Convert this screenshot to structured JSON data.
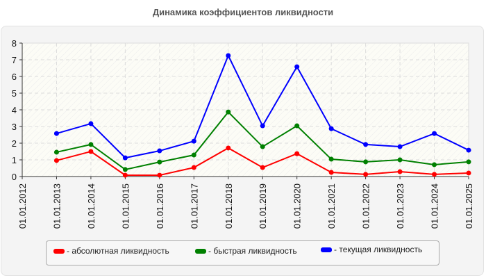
{
  "title": "Динамика коэффициентов ликвидности",
  "chart_data": {
    "type": "line",
    "title": "Динамика коэффициентов ликвидности",
    "xlabel": "",
    "ylabel": "",
    "ylim": [
      0,
      8
    ],
    "yticks": [
      0,
      1,
      2,
      3,
      4,
      5,
      6,
      7,
      8
    ],
    "grid": true,
    "legend_position": "bottom",
    "categories": [
      "01.01.2012",
      "01.01.2013",
      "01.01.2014",
      "01.01.2015",
      "01.01.2016",
      "01.01.2017",
      "01.01.2018",
      "01.01.2019",
      "01.01.2020",
      "01.01.2021",
      "01.01.2022",
      "01.01.2023",
      "01.01.2024",
      "01.01.2025"
    ],
    "series": [
      {
        "name": "абсолютная ликвидность",
        "color": "#ff0000",
        "values": [
          null,
          0.96,
          1.5,
          0.08,
          0.08,
          0.54,
          1.71,
          0.54,
          1.37,
          0.25,
          0.13,
          0.29,
          0.13,
          0.21
        ]
      },
      {
        "name": "быстрая ликвидность",
        "color": "#008000",
        "values": [
          null,
          1.46,
          1.92,
          0.42,
          0.87,
          1.29,
          3.87,
          1.79,
          3.04,
          1.04,
          0.88,
          1.0,
          0.71,
          0.88
        ]
      },
      {
        "name": "текущая ликвидность",
        "color": "#0000ff",
        "values": [
          null,
          2.58,
          3.17,
          1.12,
          1.54,
          2.12,
          7.25,
          3.04,
          6.58,
          2.87,
          1.92,
          1.79,
          2.58,
          1.58
        ]
      }
    ]
  },
  "legend": [
    {
      "label": "- абсолютная ликвидность",
      "color": "#ff0000"
    },
    {
      "label": "- быстрая ликвидность",
      "color": "#008000"
    },
    {
      "label": "- текущая ликвидность",
      "color": "#0000ff"
    }
  ]
}
